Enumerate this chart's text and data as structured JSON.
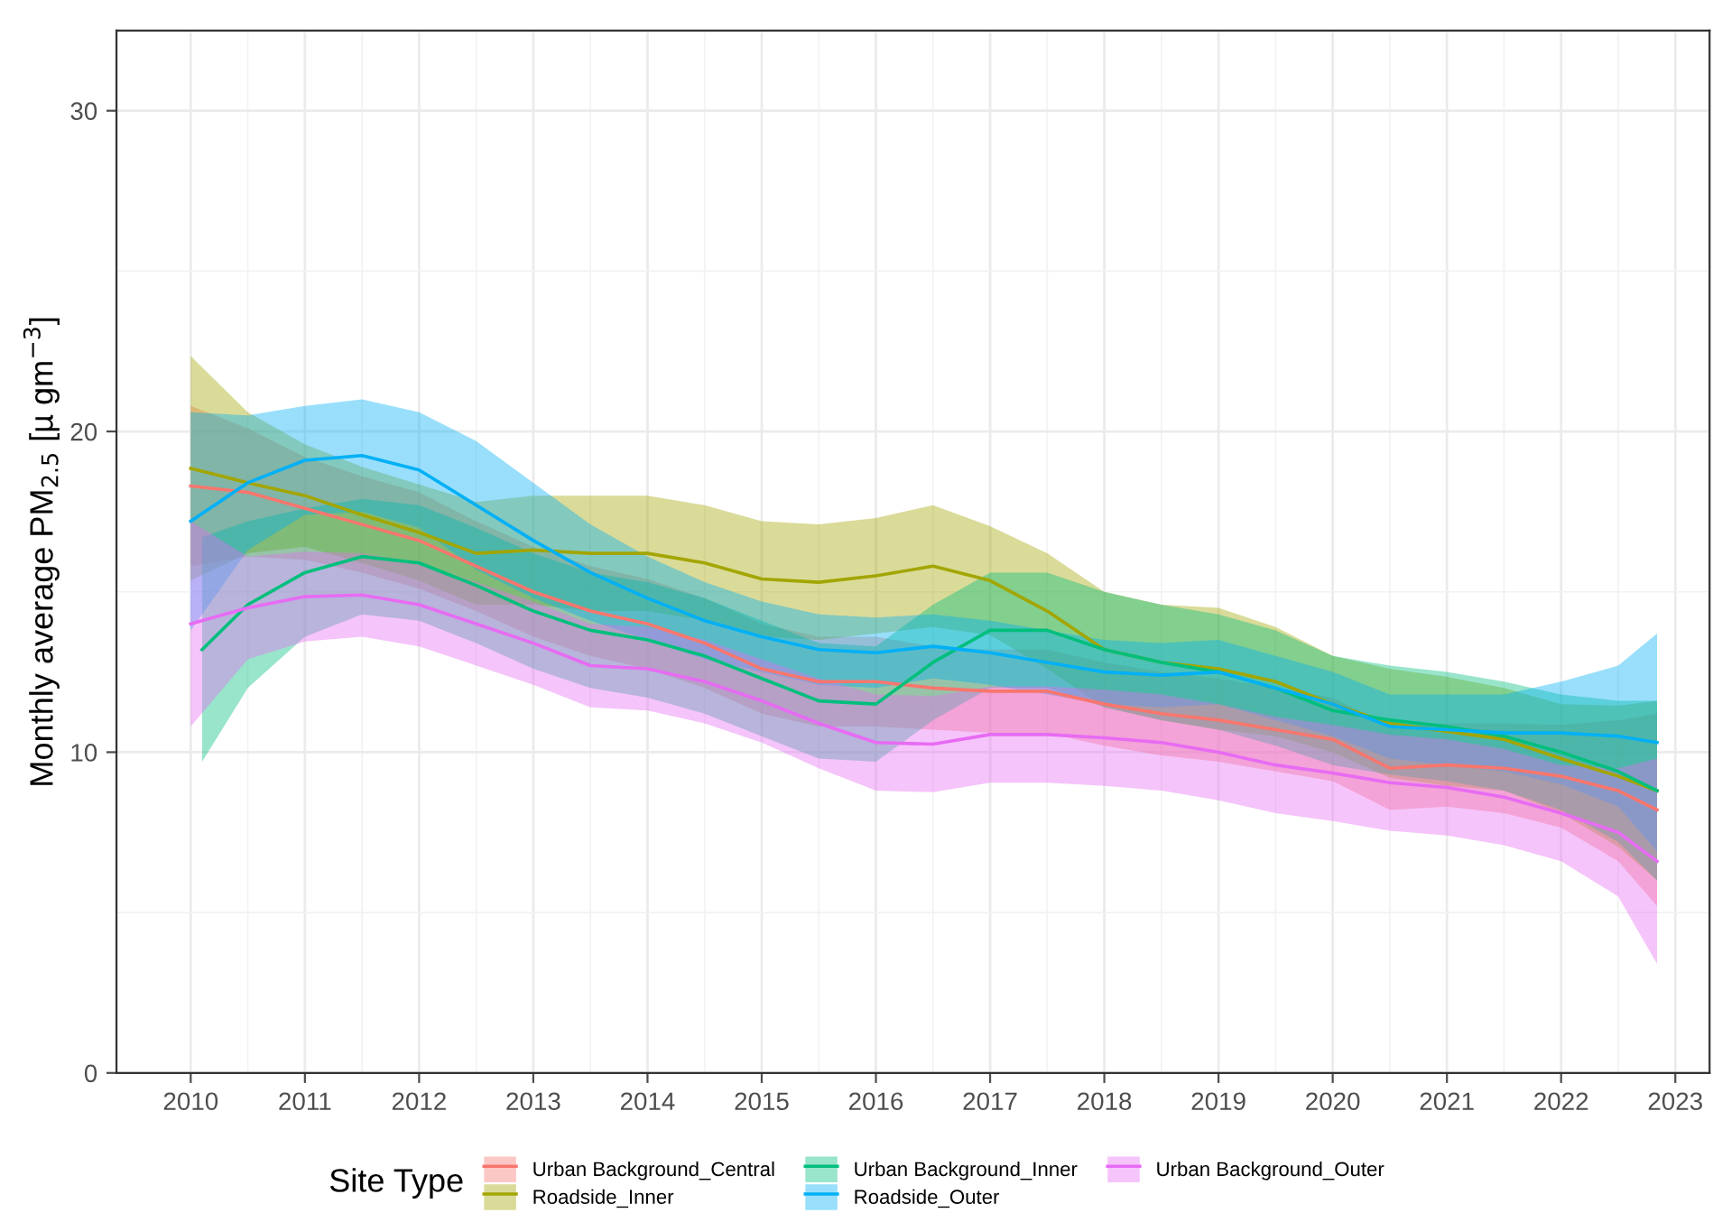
{
  "chart_data": {
    "type": "line",
    "ylabel": "Monthly average PM$_{2.5}$ [µ gm$^{−3}$]",
    "legend_title": "Site Type",
    "x": [
      2010,
      2010.5,
      2011,
      2011.5,
      2012,
      2012.5,
      2013,
      2013.5,
      2014,
      2014.5,
      2015,
      2015.5,
      2016,
      2016.5,
      2017,
      2017.5,
      2018,
      2018.5,
      2019,
      2019.5,
      2020,
      2020.5,
      2021,
      2021.5,
      2022,
      2022.5,
      2022.84
    ],
    "series": [
      {
        "name": "Urban Background_Central",
        "color": "#f8766d",
        "values": [
          18.3,
          18.1,
          17.6,
          17.1,
          16.6,
          15.8,
          15.0,
          14.4,
          14.0,
          13.4,
          12.6,
          12.2,
          12.2,
          12.0,
          11.9,
          11.9,
          11.5,
          11.2,
          11.0,
          10.7,
          10.4,
          9.5,
          9.6,
          9.5,
          9.25,
          8.8,
          8.2
        ],
        "lower": [
          15.8,
          16.1,
          16.0,
          15.6,
          15.1,
          14.4,
          13.6,
          13.0,
          12.6,
          12.0,
          11.2,
          10.8,
          10.8,
          10.7,
          10.6,
          10.6,
          10.2,
          9.9,
          9.7,
          9.4,
          9.1,
          8.2,
          8.3,
          8.1,
          7.65,
          6.6,
          5.2
        ],
        "upper": [
          20.8,
          20.1,
          19.2,
          18.6,
          18.1,
          17.2,
          16.4,
          15.8,
          15.4,
          14.8,
          14.0,
          13.6,
          13.6,
          13.3,
          13.2,
          13.2,
          12.8,
          12.5,
          12.3,
          12.0,
          11.7,
          10.8,
          10.9,
          10.9,
          10.85,
          11.0,
          11.2
        ]
      },
      {
        "name": "Roadside_Inner",
        "color": "#a3a500",
        "values": [
          18.85,
          18.4,
          18.0,
          17.4,
          16.85,
          16.2,
          16.3,
          16.2,
          16.2,
          15.9,
          15.4,
          15.3,
          15.5,
          15.8,
          15.35,
          14.4,
          13.2,
          12.8,
          12.6,
          12.2,
          11.5,
          10.9,
          10.65,
          10.4,
          9.8,
          9.25,
          8.8
        ],
        "lower": [
          15.35,
          16.2,
          16.4,
          15.9,
          15.35,
          14.6,
          14.6,
          14.4,
          14.4,
          14.1,
          13.6,
          13.5,
          13.7,
          13.9,
          13.65,
          12.6,
          11.4,
          11.0,
          10.7,
          10.5,
          10.0,
          9.2,
          8.95,
          8.8,
          8.1,
          7.05,
          6.0
        ],
        "upper": [
          22.35,
          20.6,
          19.6,
          18.9,
          18.35,
          17.8,
          18.0,
          18.0,
          18.0,
          17.7,
          17.2,
          17.1,
          17.3,
          17.7,
          17.05,
          16.2,
          15.0,
          14.6,
          14.5,
          13.9,
          13.0,
          12.6,
          12.35,
          12.0,
          11.5,
          11.45,
          11.6
        ]
      },
      {
        "name": "Urban Background_Inner",
        "color": "#00bf7d",
        "x": [
          2010.1,
          2010.5,
          2011,
          2011.5,
          2012,
          2012.5,
          2013,
          2013.5,
          2014,
          2014.5,
          2015,
          2015.5,
          2016,
          2016.5,
          2017,
          2017.5,
          2018,
          2018.5,
          2019,
          2019.5,
          2020,
          2020.5,
          2021,
          2021.5,
          2022,
          2022.5,
          2022.84
        ],
        "values": [
          13.2,
          14.6,
          15.6,
          16.1,
          15.9,
          15.2,
          14.4,
          13.8,
          13.5,
          13.0,
          12.3,
          11.6,
          11.5,
          12.8,
          13.8,
          13.8,
          13.2,
          12.8,
          12.5,
          12.0,
          11.3,
          11.0,
          10.8,
          10.5,
          10.0,
          9.4,
          8.8
        ],
        "lower": [
          9.7,
          12.0,
          13.6,
          14.3,
          14.1,
          13.4,
          12.6,
          12.0,
          11.7,
          11.2,
          10.5,
          9.8,
          9.7,
          11.0,
          12.0,
          12.0,
          11.4,
          11.0,
          10.7,
          10.2,
          9.6,
          9.3,
          9.1,
          8.8,
          8.2,
          7.2,
          6.0
        ],
        "upper": [
          16.7,
          17.2,
          17.6,
          17.9,
          17.7,
          17.0,
          16.2,
          15.6,
          15.3,
          14.8,
          14.1,
          13.4,
          13.3,
          14.6,
          15.6,
          15.6,
          15.0,
          14.6,
          14.3,
          13.8,
          13.0,
          12.7,
          12.5,
          12.2,
          11.8,
          11.6,
          11.6
        ]
      },
      {
        "name": "Roadside_Outer",
        "color": "#00b0f6",
        "values": [
          17.2,
          18.4,
          19.1,
          19.25,
          18.8,
          17.7,
          16.6,
          15.6,
          14.8,
          14.1,
          13.6,
          13.2,
          13.1,
          13.3,
          13.1,
          12.8,
          12.5,
          12.4,
          12.5,
          12.0,
          11.5,
          10.8,
          10.7,
          10.6,
          10.6,
          10.5,
          10.3
        ],
        "lower": [
          13.8,
          16.3,
          17.4,
          17.5,
          17.0,
          15.7,
          14.8,
          14.1,
          13.5,
          12.9,
          12.5,
          12.1,
          12.0,
          12.3,
          12.1,
          11.8,
          11.5,
          11.4,
          11.5,
          11.0,
          10.5,
          9.8,
          9.6,
          9.4,
          9.0,
          8.3,
          6.9
        ],
        "upper": [
          20.6,
          20.5,
          20.8,
          21.0,
          20.6,
          19.7,
          18.4,
          17.1,
          16.1,
          15.3,
          14.7,
          14.3,
          14.2,
          14.3,
          14.1,
          13.8,
          13.5,
          13.4,
          13.5,
          13.0,
          12.5,
          11.8,
          11.8,
          11.8,
          12.2,
          12.7,
          13.7
        ]
      },
      {
        "name": "Urban Background_Outer",
        "color": "#e76bf3",
        "values": [
          14.0,
          14.5,
          14.85,
          14.9,
          14.6,
          14.0,
          13.4,
          12.7,
          12.6,
          12.2,
          11.6,
          10.9,
          10.3,
          10.25,
          10.55,
          10.55,
          10.45,
          10.3,
          10.0,
          9.6,
          9.35,
          9.05,
          8.9,
          8.6,
          8.1,
          7.5,
          6.6
        ],
        "lower": [
          10.8,
          12.9,
          13.45,
          13.6,
          13.3,
          12.7,
          12.1,
          11.4,
          11.3,
          10.9,
          10.3,
          9.5,
          8.8,
          8.75,
          9.05,
          9.05,
          8.95,
          8.8,
          8.5,
          8.1,
          7.85,
          7.55,
          7.4,
          7.1,
          6.6,
          5.5,
          3.4
        ],
        "upper": [
          17.2,
          16.1,
          16.25,
          16.2,
          15.9,
          15.3,
          14.7,
          14.0,
          13.9,
          13.5,
          12.9,
          12.3,
          11.8,
          11.75,
          12.05,
          12.05,
          11.95,
          11.8,
          11.5,
          11.1,
          10.85,
          10.55,
          10.4,
          10.1,
          9.6,
          9.5,
          9.8
        ]
      }
    ],
    "xlim": [
      2009.35,
      2023.3
    ],
    "xticks": [
      2010,
      2011,
      2012,
      2013,
      2014,
      2015,
      2016,
      2017,
      2018,
      2019,
      2020,
      2021,
      2022,
      2023
    ],
    "ylim": [
      0,
      32.5
    ],
    "yticks": [
      0,
      10,
      20,
      30
    ],
    "grid": true,
    "legend": "bottom",
    "line_style": "solid",
    "marker": "none"
  }
}
